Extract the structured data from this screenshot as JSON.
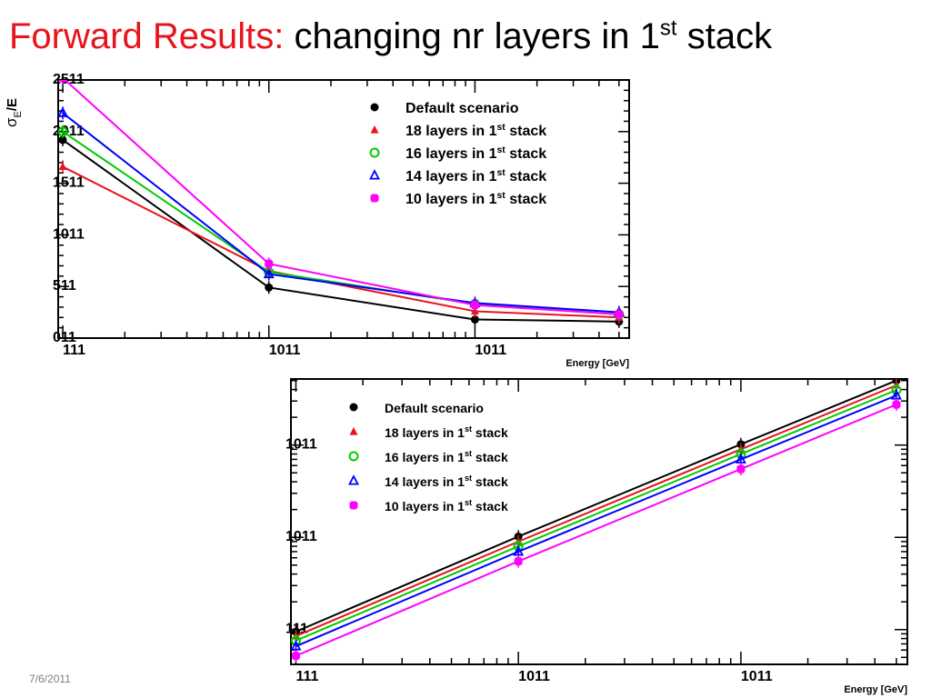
{
  "slide": {
    "title_red": "Forward Results:",
    "title_black": "changing nr layers in 1",
    "title_sup": "st",
    "title_tail": "stack",
    "date": "7/6/2011"
  },
  "colors": {
    "title_red": "#e8141b",
    "default": "#000000",
    "l18": "#e8141b",
    "l16": "#00cc00",
    "l14": "#0000ff",
    "l10": "#ff00ff"
  },
  "chart_data": [
    {
      "type": "line",
      "xscale": "log",
      "xlim": [
        0.95,
        560
      ],
      "ylim": [
        0,
        25
      ],
      "xlabel": "Energy [GeV]",
      "ylabel_main": "σ",
      "ylabel_sub": "E",
      "ylabel_tail": "/E",
      "xticks": [
        {
          "v": 1,
          "l": "1"
        },
        {
          "v": 10,
          "l": "10"
        },
        {
          "v": 100,
          "l": "10",
          "e": "2"
        }
      ],
      "yticks": [
        {
          "v": 0,
          "l": "0"
        },
        {
          "v": 5,
          "l": "5"
        },
        {
          "v": 10,
          "l": "10"
        },
        {
          "v": 15,
          "l": "15"
        },
        {
          "v": 20,
          "l": "20"
        },
        {
          "v": 25,
          "l": "25"
        }
      ],
      "x": [
        1,
        10,
        100,
        500
      ],
      "legend_position": "top-right",
      "series": [
        {
          "name": "Default scenario",
          "legend_pre": "Default scenario",
          "legend_sup": "",
          "legend_post": "",
          "key": "default",
          "marker": "circle",
          "values": [
            19.2,
            4.9,
            1.8,
            1.6
          ]
        },
        {
          "name": "18 layers in 1st stack",
          "legend_pre": "18 layers in 1",
          "legend_sup": "st",
          "legend_post": " stack",
          "key": "l18",
          "marker": "triangle",
          "values": [
            16.6,
            6.5,
            2.6,
            2.0
          ]
        },
        {
          "name": "16 layers in 1st stack",
          "legend_pre": "16 layers in 1",
          "legend_sup": "st",
          "legend_post": " stack",
          "key": "l16",
          "marker": "circle-open",
          "values": [
            20.0,
            6.4,
            3.3,
            2.3
          ]
        },
        {
          "name": "14 layers in 1st stack",
          "legend_pre": "14 layers in 1",
          "legend_sup": "st",
          "legend_post": " stack",
          "key": "l14",
          "marker": "triangle-open",
          "values": [
            21.8,
            6.2,
            3.4,
            2.5
          ]
        },
        {
          "name": "10 layers in 1st stack",
          "legend_pre": "10 layers in 1",
          "legend_sup": "st",
          "legend_post": " stack",
          "key": "l10",
          "marker": "square",
          "values": [
            25.2,
            7.2,
            3.2,
            2.3
          ]
        }
      ]
    },
    {
      "type": "line",
      "xscale": "log",
      "yscale": "log",
      "xlim": [
        0.95,
        560
      ],
      "ylim": [
        0.42,
        520
      ],
      "xlabel": "Energy [GeV]",
      "xticks": [
        {
          "v": 1,
          "l": "1"
        },
        {
          "v": 10,
          "l": "10"
        },
        {
          "v": 100,
          "l": "10",
          "e": "2"
        }
      ],
      "yticks": [
        {
          "v": 1,
          "l": "1"
        },
        {
          "v": 10,
          "l": "10"
        },
        {
          "v": 100,
          "l": "10",
          "e": "2"
        }
      ],
      "x": [
        1,
        10,
        100,
        500
      ],
      "legend_position": "top-left",
      "series": [
        {
          "name": "Default scenario",
          "legend_pre": "Default scenario",
          "legend_sup": "",
          "legend_post": "",
          "key": "default",
          "marker": "circle",
          "values": [
            0.95,
            10.2,
            102,
            500
          ]
        },
        {
          "name": "18 layers in 1st stack",
          "legend_pre": "18 layers in 1",
          "legend_sup": "st",
          "legend_post": " stack",
          "key": "l18",
          "marker": "triangle",
          "values": [
            0.85,
            9.0,
            90,
            445
          ]
        },
        {
          "name": "16 layers in 1st stack",
          "legend_pre": "16 layers in 1",
          "legend_sup": "st",
          "legend_post": " stack",
          "key": "l16",
          "marker": "circle-open",
          "values": [
            0.76,
            8.0,
            80,
            395
          ]
        },
        {
          "name": "14 layers in 1st stack",
          "legend_pre": "14 layers in 1",
          "legend_sup": "st",
          "legend_post": " stack",
          "key": "l14",
          "marker": "triangle-open",
          "values": [
            0.66,
            7.0,
            70,
            345
          ]
        },
        {
          "name": "10 layers in 1st stack",
          "legend_pre": "10 layers in 1",
          "legend_sup": "st",
          "legend_post": " stack",
          "key": "l10",
          "marker": "square",
          "values": [
            0.52,
            5.5,
            55,
            275
          ]
        }
      ]
    }
  ]
}
